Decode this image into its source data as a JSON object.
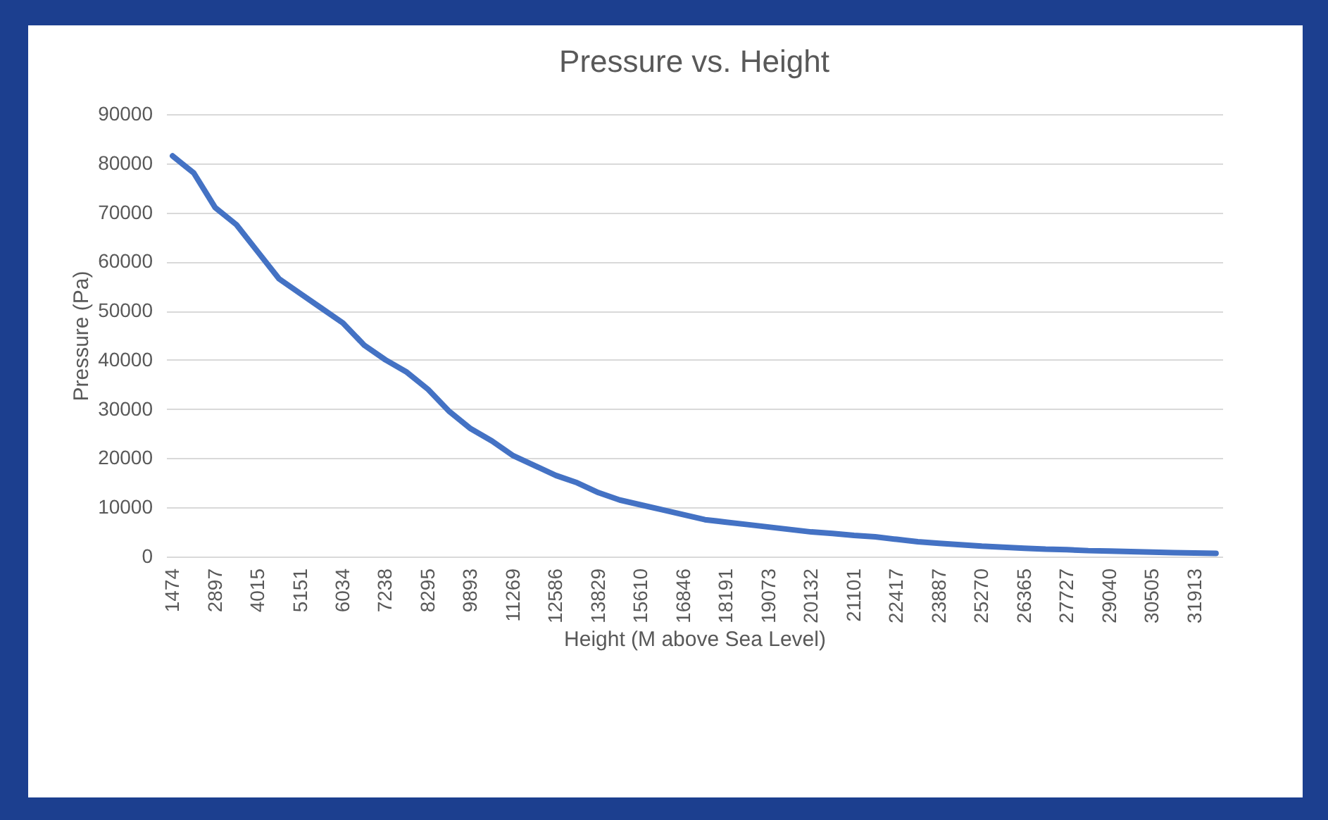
{
  "chart_data": {
    "type": "line",
    "title": "Pressure vs. Height",
    "xlabel": "Height (M above Sea Level)",
    "ylabel": "Pressure (Pa)",
    "categories": [
      "1474",
      null,
      "2897",
      null,
      "4015",
      null,
      "5151",
      null,
      "6034",
      null,
      "7238",
      null,
      "8295",
      null,
      "9893",
      null,
      "11269",
      null,
      "12586",
      null,
      "13829",
      null,
      "15610",
      null,
      "16846",
      null,
      "18191",
      null,
      "19073",
      null,
      "20132",
      null,
      "21101",
      null,
      "22417",
      null,
      "23887",
      null,
      "25270",
      null,
      "26365",
      null,
      "27727",
      null,
      "29040",
      null,
      "30505",
      null,
      "31913",
      null
    ],
    "series": [
      {
        "color": "#4472c4",
        "values": [
          81500,
          78000,
          71000,
          67500,
          62000,
          56500,
          53500,
          50500,
          47500,
          43000,
          40000,
          37500,
          34000,
          29500,
          26000,
          23500,
          20500,
          18500,
          16500,
          15000,
          13000,
          11500,
          10500,
          9500,
          8500,
          7500,
          7000,
          6500,
          6000,
          5500,
          5000,
          4700,
          4300,
          4000,
          3500,
          3000,
          2700,
          2400,
          2100,
          1900,
          1700,
          1500,
          1400,
          1200,
          1100,
          1000,
          900,
          800,
          700,
          650
        ]
      }
    ],
    "ylim": [
      0,
      90000
    ],
    "yticks": [
      0,
      10000,
      20000,
      30000,
      40000,
      50000,
      60000,
      70000,
      80000,
      90000
    ],
    "grid": "y",
    "legend": false,
    "marker": "none",
    "line_style": "solid"
  }
}
